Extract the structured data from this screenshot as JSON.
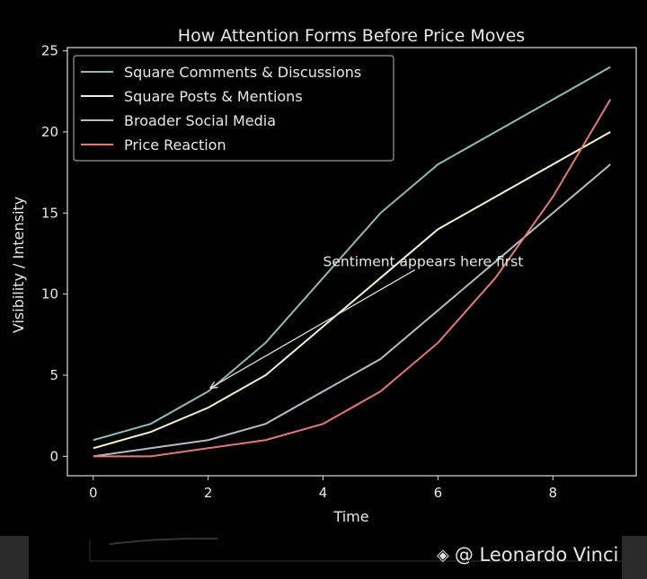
{
  "chart_data": {
    "type": "line",
    "title": "How Attention Forms Before Price Moves",
    "xlabel": "Time",
    "ylabel": "Visibility / Intensity",
    "x": [
      0,
      1,
      2,
      3,
      4,
      5,
      6,
      7,
      8,
      9
    ],
    "xlim": [
      -0.45,
      9.45
    ],
    "ylim": [
      -1.2,
      25.2
    ],
    "xticks": [
      0,
      2,
      4,
      6,
      8
    ],
    "yticks": [
      0,
      5,
      10,
      15,
      20,
      25
    ],
    "grid": false,
    "legend_position": "top-left",
    "series": [
      {
        "name": "Square Comments & Discussions",
        "color": "#8dbbb3",
        "values": [
          1,
          2,
          4,
          7,
          11,
          15,
          18,
          20,
          22,
          24
        ]
      },
      {
        "name": "Square Posts & Mentions",
        "color": "#f2f2d0",
        "values": [
          0.5,
          1.5,
          3,
          5,
          8,
          11,
          14,
          16,
          18,
          20
        ]
      },
      {
        "name": "Broader Social Media",
        "color": "#b8bcc0",
        "values": [
          0,
          0.5,
          1,
          2,
          4,
          6,
          9,
          12,
          15,
          18
        ]
      },
      {
        "name": "Price Reaction",
        "color": "#e07a78",
        "values": [
          0,
          0,
          0.5,
          1,
          2,
          4,
          7,
          11,
          16,
          22
        ]
      }
    ],
    "annotation": {
      "text": "Sentiment appears here first",
      "xy": [
        2,
        4.2
      ],
      "xytext": [
        4,
        12
      ]
    }
  },
  "watermark": "@ Leonardo Vinci"
}
